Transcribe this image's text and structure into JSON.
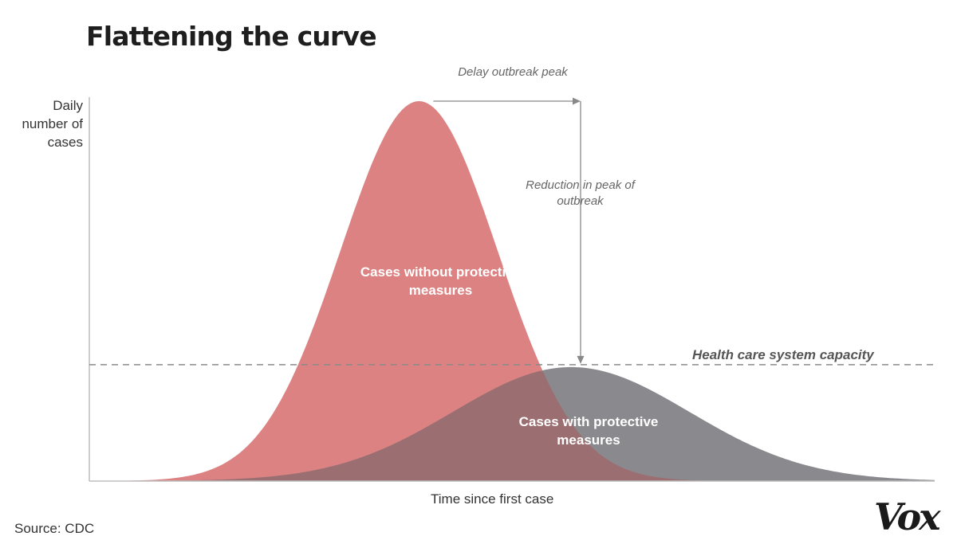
{
  "title": "Flattening the curve",
  "source": "Source: CDC",
  "logo": "Vox",
  "chart_data": {
    "type": "area",
    "title": "Flattening the curve",
    "xlabel": "Time since first case",
    "ylabel": "Daily number of cases",
    "xlim": [
      0,
      100
    ],
    "ylim": [
      0,
      100
    ],
    "grid": false,
    "legend": "none",
    "series": [
      {
        "name": "Cases without protective measures",
        "peak_x": 39,
        "peak_y": 100,
        "spread": 9.3,
        "color": "#dd8282"
      },
      {
        "name": "Cases with protective measures",
        "peak_x": 57,
        "peak_y": 30,
        "spread": 14,
        "color": "#8a8a8e"
      }
    ],
    "overlap_color": "#9b6e71",
    "capacity": {
      "label": "Health care system capacity",
      "y": 30
    },
    "annotations": {
      "delay": "Delay outbreak peak",
      "reduction": "Reduction in peak of outbreak"
    }
  }
}
